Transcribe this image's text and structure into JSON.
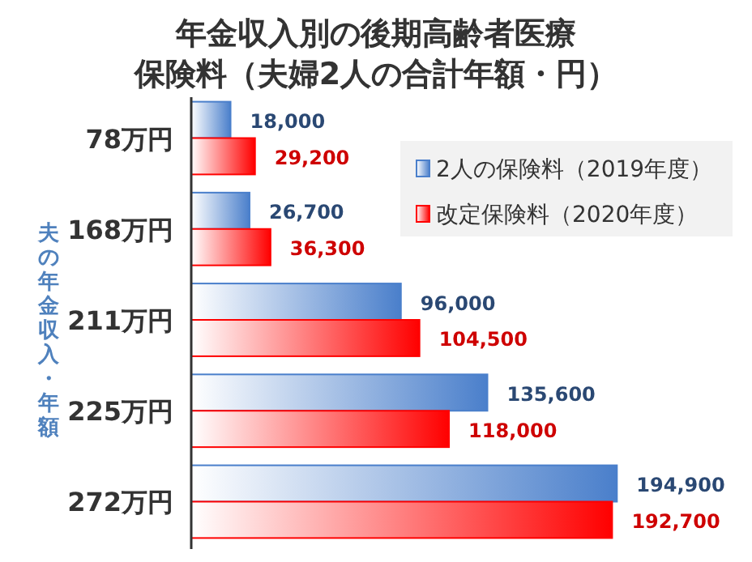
{
  "chart_data": {
    "type": "bar",
    "orientation": "horizontal",
    "title": "年金収入別の後期高齢者医療",
    "subtitle": "保険料（夫婦2人の合計年額・円）",
    "ylabel": "夫の年金収入・年額",
    "categories": [
      "78万円",
      "168万円",
      "211万円",
      "225万円",
      "272万円"
    ],
    "series": [
      {
        "name": "2人の保険料（2019年度）",
        "color": "#4a7fcb",
        "values": [
          18000,
          26700,
          96000,
          135600,
          194900
        ],
        "value_labels": [
          "18,000",
          "26,700",
          "96,000",
          "135,600",
          "194,900"
        ]
      },
      {
        "name": "改定保険料（2020年度）",
        "color": "#ff0000",
        "values": [
          29200,
          36300,
          104500,
          118000,
          192700
        ],
        "value_labels": [
          "29,200",
          "36,300",
          "104,500",
          "118,000",
          "192,700"
        ]
      }
    ],
    "legend": "top right"
  }
}
